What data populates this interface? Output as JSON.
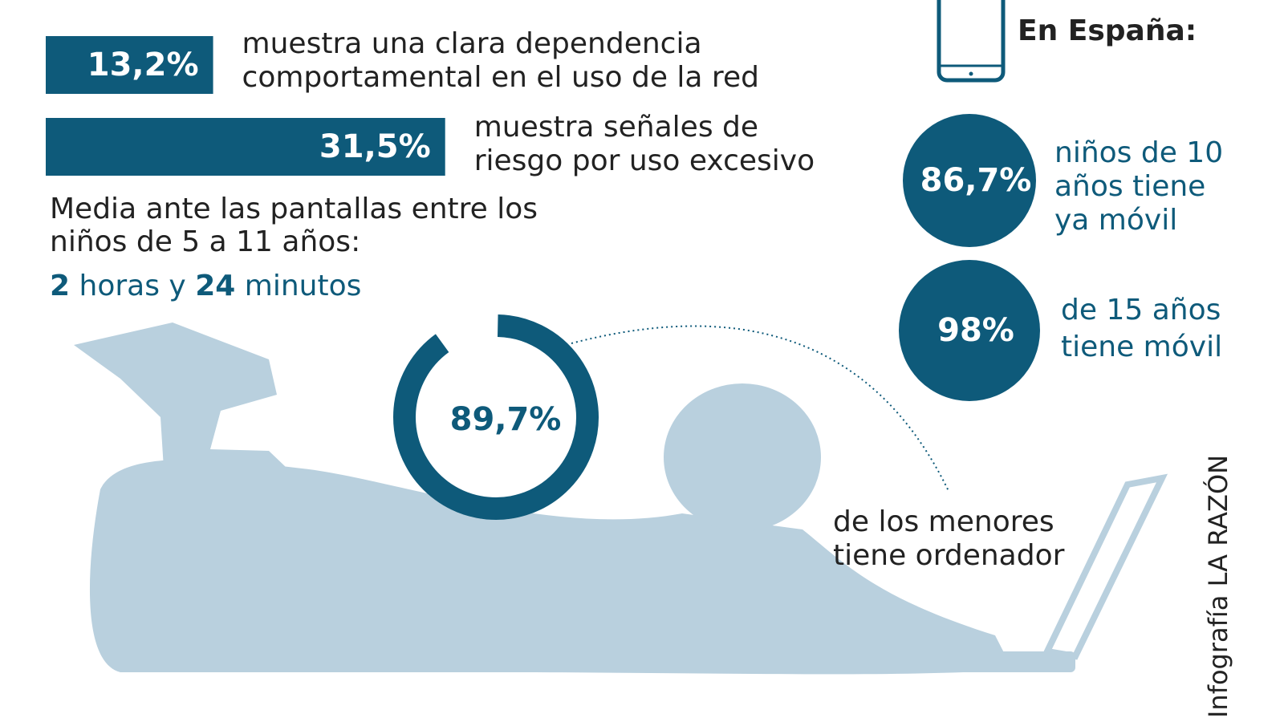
{
  "stats": [
    {
      "value": 13.2,
      "label": "13,2%",
      "text": [
        "muestra una clara dependencia",
        "comportamental en el uso de la red"
      ]
    },
    {
      "value": 31.5,
      "label": "31,5%",
      "text": [
        "muestra señales de",
        "riesgo por uso excesivo"
      ]
    }
  ],
  "screen_time": {
    "text": [
      "Media ante las pantallas entre los",
      "niños de 5 a 11 años:"
    ],
    "parts": [
      "2",
      "horas y",
      "24",
      "minutos"
    ]
  },
  "computer": {
    "value": 89.7,
    "label": "89,7%",
    "text": [
      "de los menores",
      "tiene ordenador"
    ]
  },
  "spain": {
    "heading": "En España:",
    "items": [
      {
        "label": "86,7%",
        "text": [
          "niños de 10",
          "años tiene",
          "ya móvil"
        ]
      },
      {
        "label": "98%",
        "text": [
          "de 15 años",
          "tiene móvil"
        ]
      }
    ]
  },
  "credit": "Infografía LA RAZÓN"
}
